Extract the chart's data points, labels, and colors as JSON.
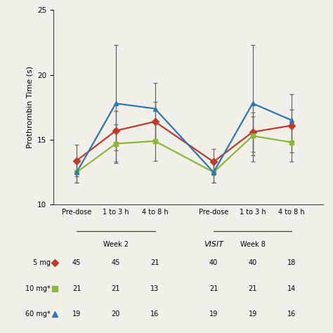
{
  "ylabel": "Prothrombin Time (s)",
  "ylim": [
    10,
    25
  ],
  "yticks": [
    10,
    15,
    20,
    25
  ],
  "x_positions": [
    0,
    1,
    2,
    3.5,
    4.5,
    5.5
  ],
  "xlim": [
    -0.6,
    6.3
  ],
  "x_tick_labels": [
    "Pre-dose",
    "1 to 3 h",
    "4 to 8 h",
    "Pre-dose",
    "1 to 3 h",
    "4 to 8 h"
  ],
  "red_values": [
    13.4,
    15.7,
    16.4,
    13.3,
    15.6,
    16.1
  ],
  "red_err_lo": [
    1.2,
    1.5,
    1.5,
    1.0,
    1.5,
    1.2
  ],
  "red_err_hi": [
    1.2,
    1.5,
    1.5,
    1.0,
    1.5,
    1.2
  ],
  "green_values": [
    12.5,
    14.7,
    14.9,
    12.5,
    15.3,
    14.8
  ],
  "green_err_lo": [
    0.8,
    1.5,
    1.5,
    0.8,
    1.5,
    1.5
  ],
  "green_err_hi": [
    0.8,
    1.5,
    1.5,
    0.8,
    1.5,
    1.5
  ],
  "blue_values": [
    12.5,
    17.8,
    17.4,
    12.5,
    17.8,
    16.5
  ],
  "blue_err_lo": [
    0.8,
    4.5,
    2.5,
    0.8,
    4.5,
    2.5
  ],
  "blue_err_hi": [
    0.8,
    4.5,
    2.0,
    0.8,
    4.5,
    2.0
  ],
  "red_color": "#c0392b",
  "green_color": "#8db63c",
  "blue_color": "#2e75b6",
  "err_color": "#666666",
  "table_rows": [
    [
      "45",
      "45",
      "21",
      "40",
      "40",
      "18"
    ],
    [
      "21",
      "21",
      "13",
      "21",
      "21",
      "14"
    ],
    [
      "19",
      "20",
      "16",
      "19",
      "19",
      "16"
    ]
  ],
  "legend_labels": [
    "5 mg",
    "10 mg*",
    "60 mg*"
  ],
  "background_color": "#f0f0e8"
}
